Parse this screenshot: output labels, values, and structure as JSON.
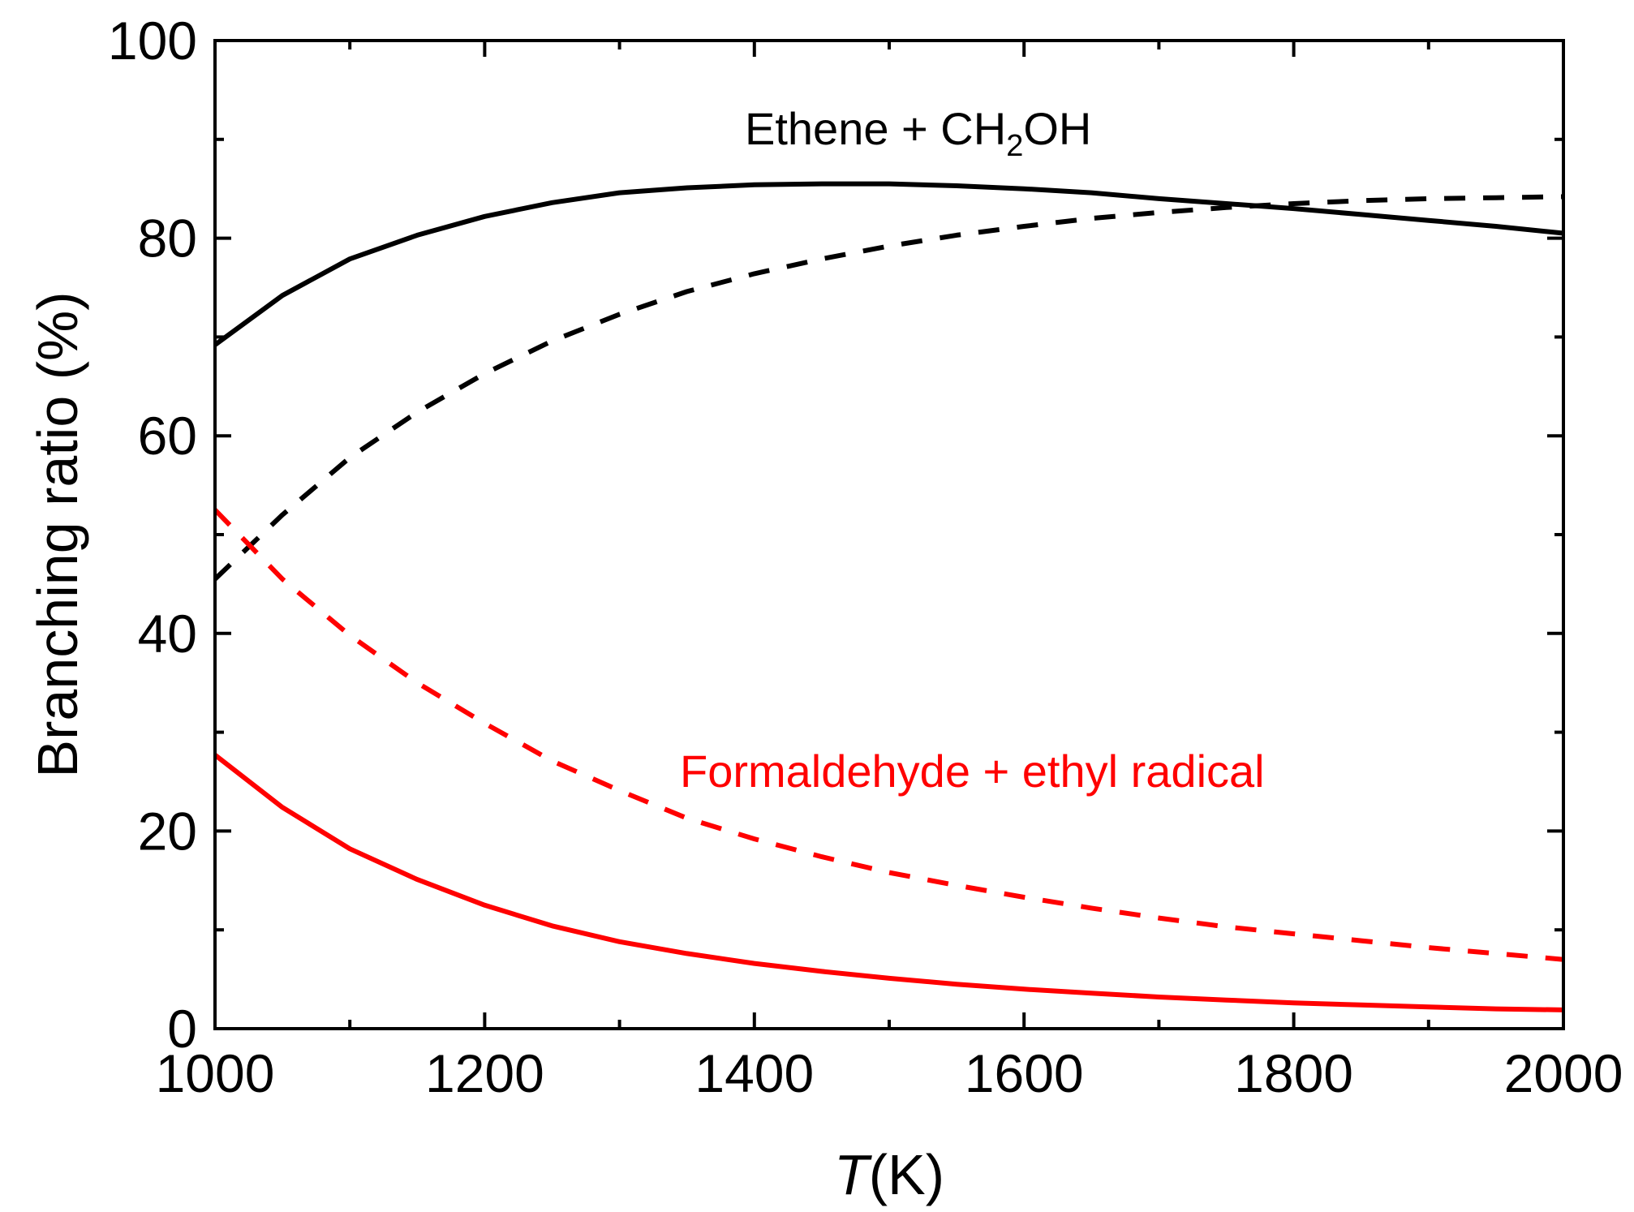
{
  "chart_data": {
    "type": "line",
    "xlabel": {
      "italic": "T",
      "rest": "(K)"
    },
    "ylabel": "Branching ratio (%)",
    "xlim": [
      1000,
      2000
    ],
    "ylim": [
      0,
      100
    ],
    "x_ticks": [
      1000,
      1200,
      1400,
      1600,
      1800,
      2000
    ],
    "y_ticks": [
      0,
      20,
      40,
      60,
      80,
      100
    ],
    "grid": false,
    "legend": "none",
    "annotations": {
      "ethene": {
        "prefix": "Ethene + CH",
        "sub": "2",
        "suffix": "OH",
        "color": "#000000"
      },
      "formaldehyde": {
        "text": "Formaldehyde + ethyl radical",
        "color": "#ff0000"
      }
    },
    "x": [
      1000,
      1050,
      1100,
      1150,
      1200,
      1250,
      1300,
      1350,
      1400,
      1450,
      1500,
      1550,
      1600,
      1650,
      1700,
      1750,
      1800,
      1850,
      1900,
      1950,
      2000
    ],
    "series": [
      {
        "color": "#000000",
        "dash": "solid",
        "values": [
          69.2,
          74.2,
          77.9,
          80.3,
          82.2,
          83.6,
          84.6,
          85.1,
          85.4,
          85.5,
          85.5,
          85.3,
          85.0,
          84.6,
          84.0,
          83.5,
          83.0,
          82.4,
          81.8,
          81.2,
          80.5
        ]
      },
      {
        "color": "#000000",
        "dash": "dashed",
        "values": [
          45.5,
          52.0,
          57.8,
          62.4,
          66.3,
          69.6,
          72.3,
          74.6,
          76.4,
          77.9,
          79.2,
          80.3,
          81.2,
          82.0,
          82.6,
          83.1,
          83.5,
          83.8,
          84.0,
          84.1,
          84.2
        ]
      },
      {
        "color": "#ff0000",
        "dash": "solid",
        "values": [
          27.7,
          22.4,
          18.2,
          15.1,
          12.5,
          10.4,
          8.8,
          7.6,
          6.6,
          5.8,
          5.1,
          4.5,
          4.0,
          3.6,
          3.2,
          2.9,
          2.6,
          2.4,
          2.2,
          2.0,
          1.9
        ]
      },
      {
        "color": "#ff0000",
        "dash": "dashed",
        "values": [
          52.5,
          45.5,
          39.8,
          35.0,
          30.9,
          27.1,
          24.1,
          21.3,
          19.2,
          17.4,
          15.8,
          14.5,
          13.3,
          12.2,
          11.2,
          10.3,
          9.6,
          8.9,
          8.2,
          7.6,
          7.0
        ]
      }
    ]
  }
}
